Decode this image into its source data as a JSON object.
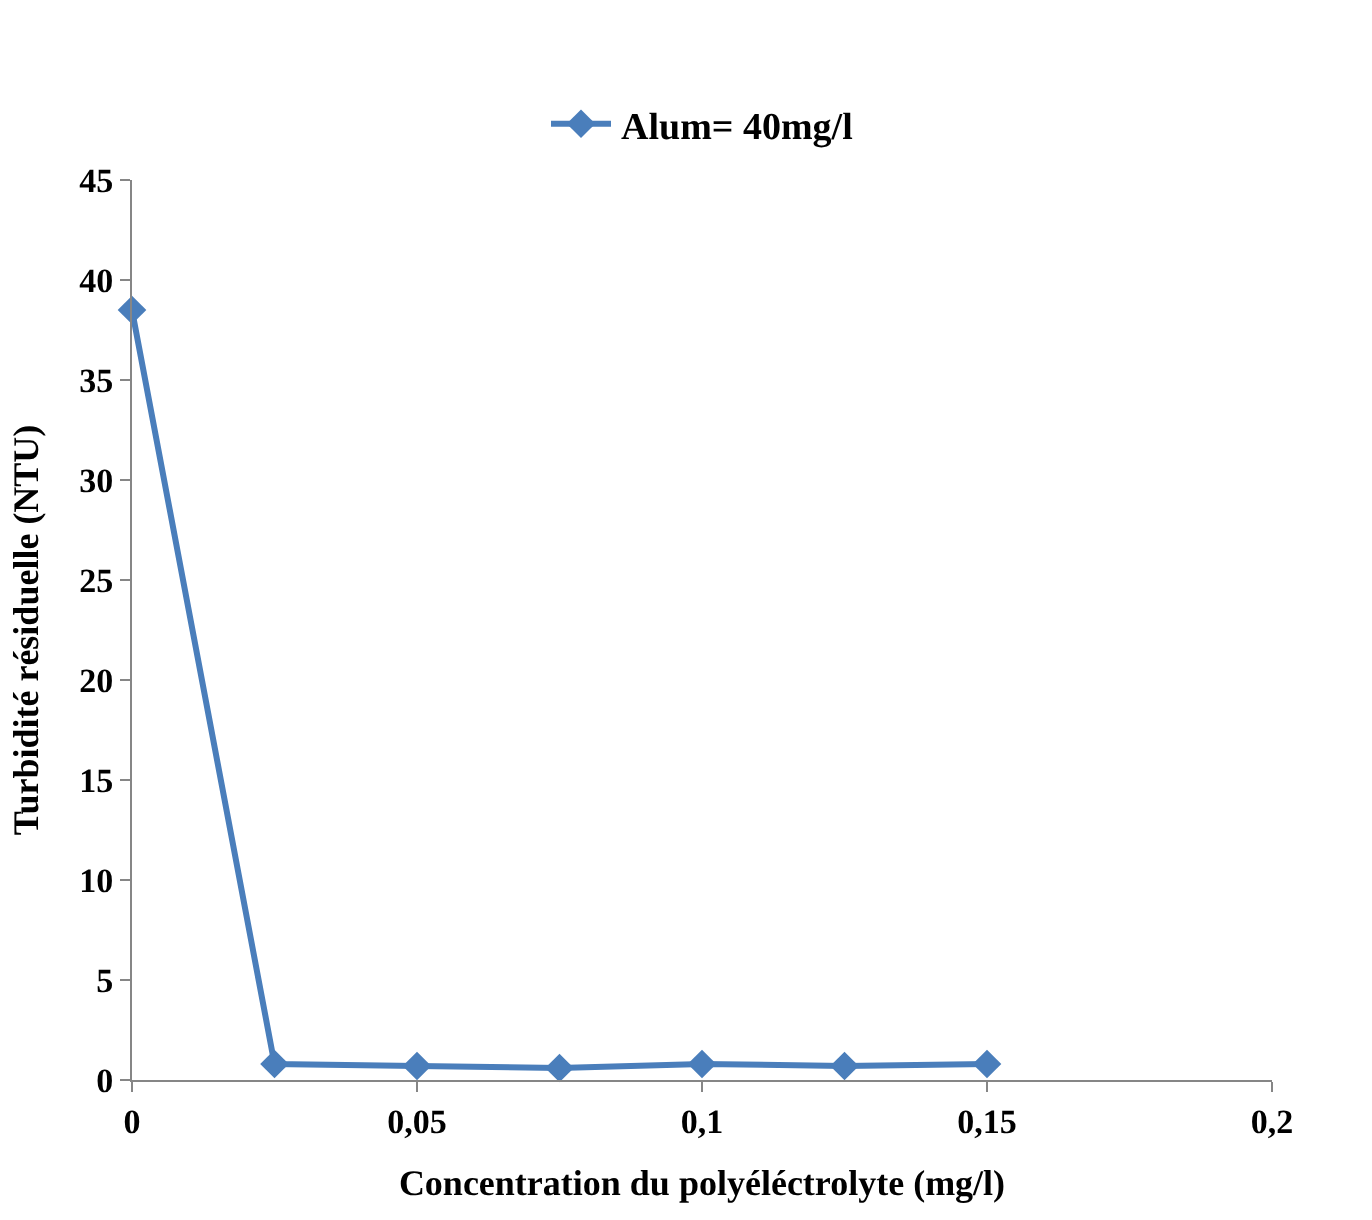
{
  "chart_data": {
    "type": "line",
    "xlabel": "Concentration du polyéléctrolyte (mg/l)",
    "ylabel": "Turbidité résiduelle (NTU)",
    "x": [
      0,
      0.025,
      0.05,
      0.075,
      0.1,
      0.125,
      0.15
    ],
    "series": [
      {
        "name": "Alum= 40mg/l",
        "color": "#4a7ebb",
        "values": [
          38.5,
          0.8,
          0.7,
          0.6,
          0.8,
          0.7,
          0.8
        ]
      }
    ],
    "xlim": [
      0,
      0.2
    ],
    "xticks": [
      {
        "value": 0,
        "label": "0"
      },
      {
        "value": 0.05,
        "label": "0,05"
      },
      {
        "value": 0.1,
        "label": "0,1"
      },
      {
        "value": 0.15,
        "label": "0,15"
      },
      {
        "value": 0.2,
        "label": "0,2"
      }
    ],
    "ylim": [
      0,
      45
    ],
    "yticks": [
      0,
      5,
      10,
      15,
      20,
      25,
      30,
      35,
      40,
      45
    ],
    "legend": "top",
    "marker": "diamond",
    "line_style": "solid"
  }
}
